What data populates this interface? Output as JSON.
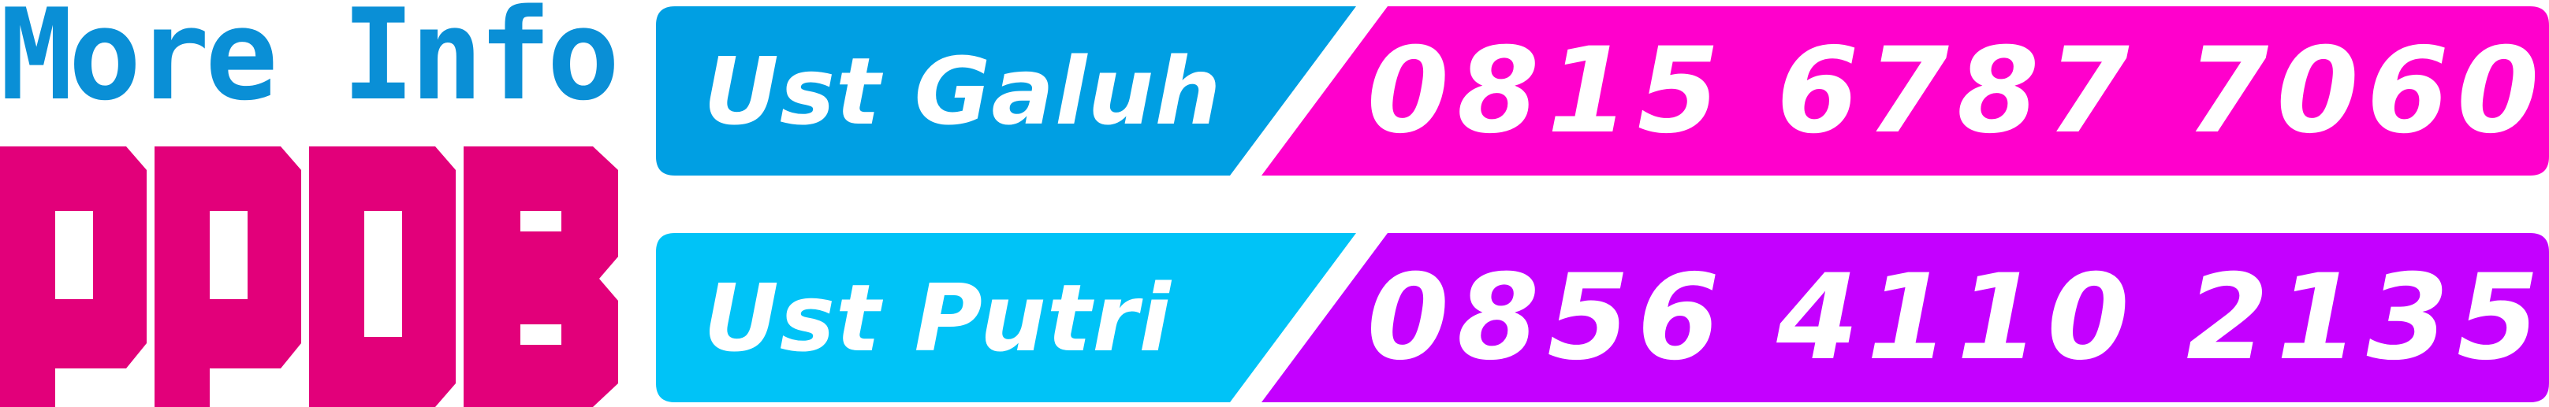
{
  "header": {
    "more_info": "More Info",
    "ppdb": "PPDB"
  },
  "contacts": [
    {
      "name": "Ust Galuh",
      "phone": "0815 6787 7060"
    },
    {
      "name": "Ust Putri",
      "phone": "0856 4110 2135"
    }
  ],
  "colors": {
    "more_info_text": "#0a8fd6",
    "ppdb_text": "#e2007a",
    "row1_name_bg": "#009fe3",
    "row1_phone_bg": "#ff00cc",
    "row2_name_bg": "#00c3f7",
    "row2_phone_bg": "#c400ff",
    "text": "#ffffff"
  }
}
